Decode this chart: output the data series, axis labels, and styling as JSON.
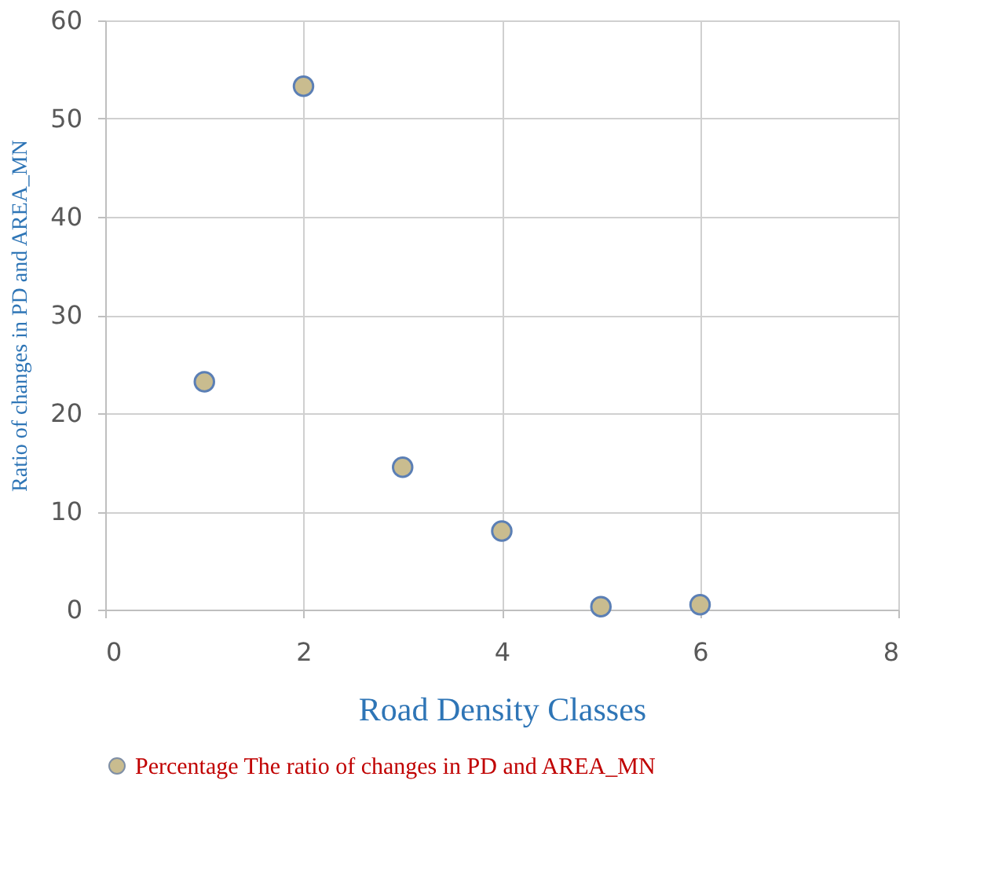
{
  "chart_data": {
    "type": "scatter",
    "xlabel": "Road Density Classes",
    "ylabel": "Ratio of changes in PD and AREA_MN",
    "x": [
      1,
      2,
      3,
      4,
      5,
      6
    ],
    "series": [
      {
        "name": "Percentage The ratio of changes in PD and AREA_MN",
        "color": "#c9bc8f",
        "values": [
          23.2,
          53.3,
          14.5,
          8.0,
          0.3,
          0.5
        ]
      }
    ],
    "xlim": [
      0,
      8
    ],
    "xticks": [
      0,
      2,
      4,
      6,
      8
    ],
    "ylim": [
      0,
      60
    ],
    "yticks": [
      0,
      10,
      20,
      30,
      40,
      50,
      60
    ],
    "grid": true,
    "legend": "bottom",
    "marker": "circle"
  }
}
